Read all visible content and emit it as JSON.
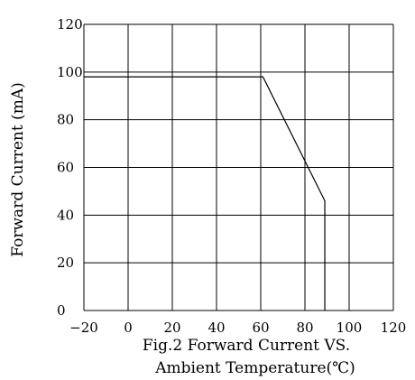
{
  "chart_data": {
    "type": "line",
    "title": "",
    "xlabel": "",
    "ylabel": "Forward Current (mA)",
    "xlim": [
      -20,
      120
    ],
    "ylim": [
      0,
      120
    ],
    "x_ticks": [
      -20,
      0,
      20,
      40,
      60,
      80,
      100,
      120
    ],
    "y_ticks": [
      0,
      20,
      40,
      60,
      80,
      100,
      120
    ],
    "x_tick_labels": [
      "−20",
      "0",
      "20",
      "40",
      "60",
      "80",
      "100",
      "120"
    ],
    "y_tick_labels": [
      "0",
      "20",
      "40",
      "60",
      "80",
      "100",
      "120"
    ],
    "grid": true,
    "series": [
      {
        "x": [
          -20,
          61,
          89,
          89
        ],
        "y": [
          98,
          98,
          46,
          0
        ]
      }
    ]
  },
  "caption": {
    "line1": "Fig.2 Forward Current VS.",
    "line2": "Ambient Temperature(℃)"
  }
}
